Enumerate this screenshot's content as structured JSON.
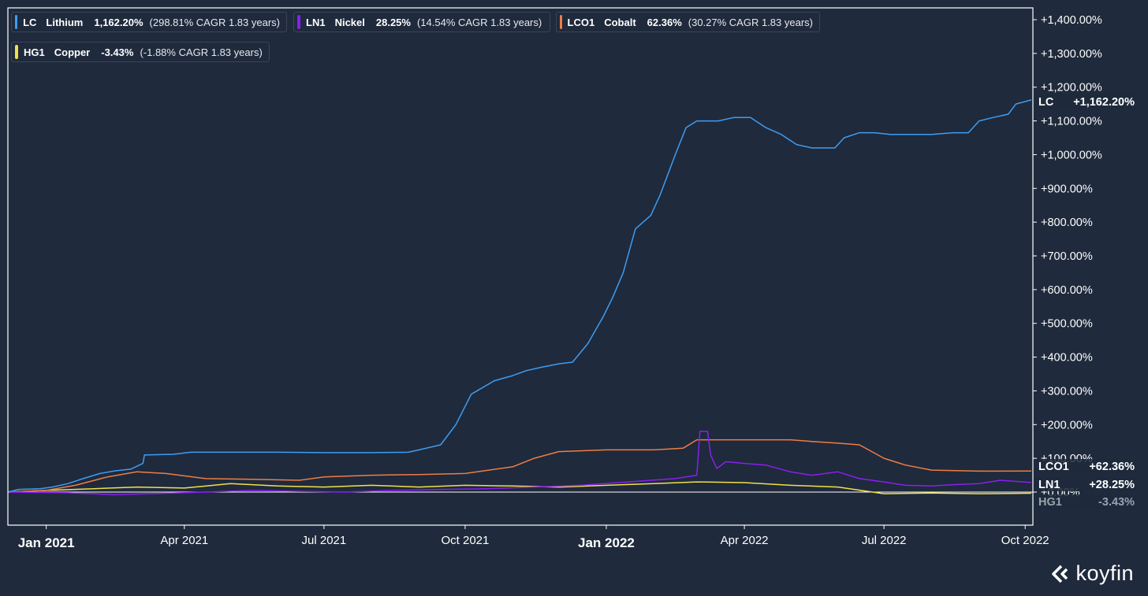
{
  "brand": {
    "name": "koyfin",
    "icon": "koyfin-chevron-logo"
  },
  "chart_data": {
    "type": "line",
    "y_unit": "percent change",
    "ylim": [
      -100,
      1400
    ],
    "y_ticks": [
      {
        "value": 1400,
        "label": "+1,400.00%"
      },
      {
        "value": 1300,
        "label": "+1,300.00%"
      },
      {
        "value": 1200,
        "label": "+1,200.00%"
      },
      {
        "value": 1100,
        "label": "+1,100.00%"
      },
      {
        "value": 1000,
        "label": "+1,000.00%"
      },
      {
        "value": 900,
        "label": "+900.00%"
      },
      {
        "value": 800,
        "label": "+800.00%"
      },
      {
        "value": 700,
        "label": "+700.00%"
      },
      {
        "value": 600,
        "label": "+600.00%"
      },
      {
        "value": 500,
        "label": "+500.00%"
      },
      {
        "value": 400,
        "label": "+400.00%"
      },
      {
        "value": 300,
        "label": "+300.00%"
      },
      {
        "value": 200,
        "label": "+200.00%"
      },
      {
        "value": 100,
        "label": "+100.00%"
      },
      {
        "value": 0,
        "label": "+0.00%"
      }
    ],
    "x_ticks": [
      {
        "date": "2021-01-01",
        "label": "Jan 2021",
        "bold": true
      },
      {
        "date": "2021-04-01",
        "label": "Apr 2021",
        "bold": false
      },
      {
        "date": "2021-07-01",
        "label": "Jul 2021",
        "bold": false
      },
      {
        "date": "2021-10-01",
        "label": "Oct 2021",
        "bold": false
      },
      {
        "date": "2022-01-01",
        "label": "Jan 2022",
        "bold": true
      },
      {
        "date": "2022-04-01",
        "label": "Apr 2022",
        "bold": false
      },
      {
        "date": "2022-07-01",
        "label": "Jul 2022",
        "bold": false
      },
      {
        "date": "2022-10-01",
        "label": "Oct 2022",
        "bold": false
      }
    ],
    "x_range": [
      "2020-12-07",
      "2022-10-05"
    ],
    "grid": false,
    "legend_position": "top-left",
    "series": [
      {
        "ticker": "LC",
        "name": "Lithium",
        "color": "#3d9df2",
        "legend_value": "1,162.20%",
        "legend_cagr": "(298.81% CAGR 1.83 years)",
        "end_label_value": "+1,162.20%",
        "points": [
          [
            "2020-12-07",
            0
          ],
          [
            "2020-12-14",
            8
          ],
          [
            "2020-12-28",
            10
          ],
          [
            "2021-01-05",
            15
          ],
          [
            "2021-01-15",
            25
          ],
          [
            "2021-01-25",
            40
          ],
          [
            "2021-02-05",
            55
          ],
          [
            "2021-02-15",
            63
          ],
          [
            "2021-02-25",
            68
          ],
          [
            "2021-03-05",
            85
          ],
          [
            "2021-03-06",
            110
          ],
          [
            "2021-03-25",
            112
          ],
          [
            "2021-04-05",
            118
          ],
          [
            "2021-04-15",
            118
          ],
          [
            "2021-05-01",
            118
          ],
          [
            "2021-05-15",
            118
          ],
          [
            "2021-06-01",
            118
          ],
          [
            "2021-07-01",
            117
          ],
          [
            "2021-08-01",
            117
          ],
          [
            "2021-08-25",
            118
          ],
          [
            "2021-09-01",
            125
          ],
          [
            "2021-09-15",
            140
          ],
          [
            "2021-09-25",
            200
          ],
          [
            "2021-10-05",
            290
          ],
          [
            "2021-10-20",
            330
          ],
          [
            "2021-11-01",
            345
          ],
          [
            "2021-11-10",
            360
          ],
          [
            "2021-11-20",
            370
          ],
          [
            "2021-12-01",
            380
          ],
          [
            "2021-12-10",
            385
          ],
          [
            "2021-12-20",
            440
          ],
          [
            "2021-12-30",
            520
          ],
          [
            "2022-01-05",
            575
          ],
          [
            "2022-01-12",
            650
          ],
          [
            "2022-01-20",
            780
          ],
          [
            "2022-01-30",
            820
          ],
          [
            "2022-02-05",
            880
          ],
          [
            "2022-02-15",
            1000
          ],
          [
            "2022-02-22",
            1080
          ],
          [
            "2022-03-01",
            1100
          ],
          [
            "2022-03-15",
            1100
          ],
          [
            "2022-03-25",
            1110
          ],
          [
            "2022-04-05",
            1110
          ],
          [
            "2022-04-15",
            1080
          ],
          [
            "2022-04-25",
            1060
          ],
          [
            "2022-05-05",
            1030
          ],
          [
            "2022-05-15",
            1020
          ],
          [
            "2022-05-30",
            1020
          ],
          [
            "2022-06-05",
            1050
          ],
          [
            "2022-06-15",
            1065
          ],
          [
            "2022-06-25",
            1065
          ],
          [
            "2022-07-05",
            1060
          ],
          [
            "2022-07-20",
            1060
          ],
          [
            "2022-08-01",
            1060
          ],
          [
            "2022-08-15",
            1065
          ],
          [
            "2022-08-25",
            1065
          ],
          [
            "2022-09-01",
            1100
          ],
          [
            "2022-09-10",
            1110
          ],
          [
            "2022-09-20",
            1120
          ],
          [
            "2022-09-25",
            1150
          ],
          [
            "2022-10-05",
            1162.2
          ]
        ]
      },
      {
        "ticker": "LN1",
        "name": "Nickel",
        "color": "#8a1ff0",
        "legend_value": "28.25%",
        "legend_cagr": "(14.54% CAGR 1.83 years)",
        "end_label_value": "+28.25%",
        "points": [
          [
            "2020-12-07",
            0
          ],
          [
            "2021-01-15",
            -2
          ],
          [
            "2021-02-15",
            -8
          ],
          [
            "2021-03-15",
            -4
          ],
          [
            "2021-04-15",
            0
          ],
          [
            "2021-05-15",
            5
          ],
          [
            "2021-06-15",
            2
          ],
          [
            "2021-07-15",
            0
          ],
          [
            "2021-08-15",
            5
          ],
          [
            "2021-09-15",
            8
          ],
          [
            "2021-10-15",
            10
          ],
          [
            "2021-11-15",
            15
          ],
          [
            "2021-12-15",
            20
          ],
          [
            "2022-01-15",
            30
          ],
          [
            "2022-02-15",
            40
          ],
          [
            "2022-03-01",
            50
          ],
          [
            "2022-03-03",
            180
          ],
          [
            "2022-03-08",
            180
          ],
          [
            "2022-03-10",
            110
          ],
          [
            "2022-03-14",
            70
          ],
          [
            "2022-03-20",
            90
          ],
          [
            "2022-04-01",
            85
          ],
          [
            "2022-04-15",
            80
          ],
          [
            "2022-05-01",
            60
          ],
          [
            "2022-05-15",
            50
          ],
          [
            "2022-06-01",
            60
          ],
          [
            "2022-06-15",
            40
          ],
          [
            "2022-07-01",
            30
          ],
          [
            "2022-07-15",
            20
          ],
          [
            "2022-08-01",
            18
          ],
          [
            "2022-08-15",
            22
          ],
          [
            "2022-09-01",
            25
          ],
          [
            "2022-09-15",
            35
          ],
          [
            "2022-10-05",
            28.25
          ]
        ]
      },
      {
        "ticker": "LCO1",
        "name": "Cobalt",
        "color": "#ee7d45",
        "legend_value": "62.36%",
        "legend_cagr": "(30.27% CAGR 1.83 years)",
        "end_label_value": "+62.36%",
        "points": [
          [
            "2020-12-07",
            0
          ],
          [
            "2021-01-01",
            5
          ],
          [
            "2021-01-20",
            20
          ],
          [
            "2021-02-10",
            45
          ],
          [
            "2021-03-01",
            60
          ],
          [
            "2021-03-20",
            55
          ],
          [
            "2021-04-15",
            40
          ],
          [
            "2021-05-15",
            38
          ],
          [
            "2021-06-15",
            35
          ],
          [
            "2021-07-01",
            45
          ],
          [
            "2021-08-01",
            50
          ],
          [
            "2021-09-01",
            52
          ],
          [
            "2021-10-01",
            55
          ],
          [
            "2021-11-01",
            75
          ],
          [
            "2021-11-15",
            100
          ],
          [
            "2021-12-01",
            120
          ],
          [
            "2022-01-01",
            125
          ],
          [
            "2022-02-01",
            125
          ],
          [
            "2022-02-20",
            130
          ],
          [
            "2022-03-01",
            155
          ],
          [
            "2022-04-01",
            155
          ],
          [
            "2022-05-01",
            155
          ],
          [
            "2022-05-15",
            150
          ],
          [
            "2022-06-01",
            145
          ],
          [
            "2022-06-15",
            140
          ],
          [
            "2022-07-01",
            100
          ],
          [
            "2022-07-15",
            80
          ],
          [
            "2022-08-01",
            65
          ],
          [
            "2022-09-01",
            62
          ],
          [
            "2022-10-05",
            62.36
          ]
        ]
      },
      {
        "ticker": "HG1",
        "name": "Copper",
        "color": "#f0e04b",
        "legend_value": "-3.43%",
        "legend_cagr": "(-1.88% CAGR 1.83 years)",
        "end_label_value": "-3.43%",
        "points": [
          [
            "2020-12-07",
            0
          ],
          [
            "2021-01-01",
            5
          ],
          [
            "2021-02-01",
            10
          ],
          [
            "2021-03-01",
            15
          ],
          [
            "2021-04-01",
            12
          ],
          [
            "2021-05-01",
            25
          ],
          [
            "2021-06-01",
            18
          ],
          [
            "2021-07-01",
            15
          ],
          [
            "2021-08-01",
            20
          ],
          [
            "2021-09-01",
            15
          ],
          [
            "2021-10-01",
            20
          ],
          [
            "2021-11-01",
            18
          ],
          [
            "2021-12-01",
            15
          ],
          [
            "2022-01-01",
            20
          ],
          [
            "2022-02-01",
            25
          ],
          [
            "2022-03-01",
            30
          ],
          [
            "2022-04-01",
            28
          ],
          [
            "2022-05-01",
            20
          ],
          [
            "2022-06-01",
            15
          ],
          [
            "2022-07-01",
            -5
          ],
          [
            "2022-08-01",
            -3
          ],
          [
            "2022-09-01",
            -5
          ],
          [
            "2022-10-05",
            -3.43
          ]
        ]
      }
    ]
  }
}
